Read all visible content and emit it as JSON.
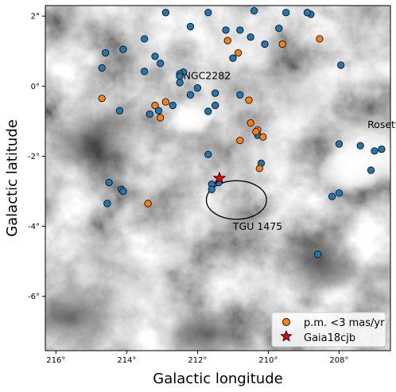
{
  "chart_data": {
    "type": "scatter",
    "xlabel": "Galactic longitude",
    "ylabel": "Galactic latitude",
    "xlim": [
      216.3,
      206.55
    ],
    "ylim": [
      -7.55,
      2.3
    ],
    "x_ticks": [
      216,
      214,
      212,
      210,
      208
    ],
    "x_tick_labels": [
      "216°",
      "214°",
      "212°",
      "210°",
      "208°"
    ],
    "y_ticks": [
      2,
      0,
      -2,
      -4,
      -6
    ],
    "y_tick_labels": [
      "2°",
      "0°",
      "-2°",
      "-4°",
      "-6°"
    ],
    "background": "grayscale dust/extinction map",
    "grid": false,
    "legend_position": "lower-right",
    "annotations": [
      {
        "text": "NGC2282",
        "x": 212.4,
        "y": 0.2
      },
      {
        "text": "Rosette",
        "x": 207.2,
        "y": -1.2
      },
      {
        "text": "TGU 1475",
        "x": 211.0,
        "y": -4.1
      }
    ],
    "ellipse": {
      "center": [
        210.9,
        -3.25
      ],
      "width_deg": 1.7,
      "height_deg": 1.1,
      "color": "#000000"
    },
    "series": [
      {
        "color": "#1f77b4",
        "points": [
          [
            209.5,
            2.1
          ],
          [
            208.8,
            2.05
          ],
          [
            208.9,
            2.1
          ],
          [
            210.4,
            2.15
          ],
          [
            211.7,
            2.1
          ],
          [
            212.9,
            2.1
          ],
          [
            212.2,
            1.7
          ],
          [
            210.8,
            1.6
          ],
          [
            213.5,
            1.35
          ],
          [
            210.1,
            1.2
          ],
          [
            210.5,
            1.4
          ],
          [
            211.2,
            1.6
          ],
          [
            214.1,
            1.05
          ],
          [
            214.6,
            0.95
          ],
          [
            213.2,
            0.85
          ],
          [
            211.0,
            0.8
          ],
          [
            213.05,
            0.65
          ],
          [
            214.7,
            0.52
          ],
          [
            213.5,
            0.42
          ],
          [
            212.4,
            0.4
          ],
          [
            212.5,
            0.35
          ],
          [
            212.5,
            0.28
          ],
          [
            212.5,
            0.1
          ],
          [
            212.0,
            -0.05
          ],
          [
            211.5,
            -0.2
          ],
          [
            210.8,
            -0.25
          ],
          [
            212.2,
            -0.25
          ],
          [
            212.7,
            -0.55
          ],
          [
            211.5,
            -0.55
          ],
          [
            213.1,
            -0.7
          ],
          [
            214.2,
            -0.7
          ],
          [
            211.7,
            -0.72
          ],
          [
            213.35,
            -0.8
          ],
          [
            210.3,
            -1.4
          ],
          [
            208.0,
            -1.65
          ],
          [
            207.4,
            -1.7
          ],
          [
            207.0,
            -1.85
          ],
          [
            206.8,
            -1.8
          ],
          [
            211.7,
            -1.95
          ],
          [
            210.2,
            -2.2
          ],
          [
            207.1,
            -2.4
          ],
          [
            211.6,
            -2.8
          ],
          [
            211.4,
            -2.75
          ],
          [
            211.6,
            -2.95
          ],
          [
            214.5,
            -2.75
          ],
          [
            214.15,
            -2.95
          ],
          [
            214.1,
            -3.0
          ],
          [
            208.0,
            -3.05
          ],
          [
            208.2,
            -3.15
          ],
          [
            214.55,
            -3.35
          ],
          [
            208.6,
            -4.8
          ],
          [
            207.95,
            0.6
          ],
          [
            209.7,
            1.65
          ]
        ]
      },
      {
        "name": "p.m. <3 mas/yr",
        "color": "#ff7f0e",
        "points": [
          [
            208.55,
            1.35
          ],
          [
            211.15,
            1.3
          ],
          [
            209.6,
            1.2
          ],
          [
            210.85,
            0.95
          ],
          [
            214.7,
            -0.35
          ],
          [
            212.9,
            -0.45
          ],
          [
            213.2,
            -0.55
          ],
          [
            210.55,
            -0.4
          ],
          [
            213.05,
            -0.9
          ],
          [
            210.5,
            -1.05
          ],
          [
            210.3,
            -1.25
          ],
          [
            210.35,
            -1.3
          ],
          [
            210.15,
            -1.45
          ],
          [
            210.8,
            -1.55
          ],
          [
            210.25,
            -2.35
          ],
          [
            213.4,
            -3.35
          ]
        ]
      }
    ],
    "star_marker": {
      "name": "Gaia18cjb",
      "x": 211.38,
      "y": -2.63,
      "color": "#e8000b"
    },
    "legend": [
      {
        "label": "p.m. <3 mas/yr",
        "marker": "circle",
        "color": "#ff7f0e"
      },
      {
        "label": "Gaia18cjb",
        "marker": "star",
        "color": "#e8000b"
      }
    ]
  }
}
